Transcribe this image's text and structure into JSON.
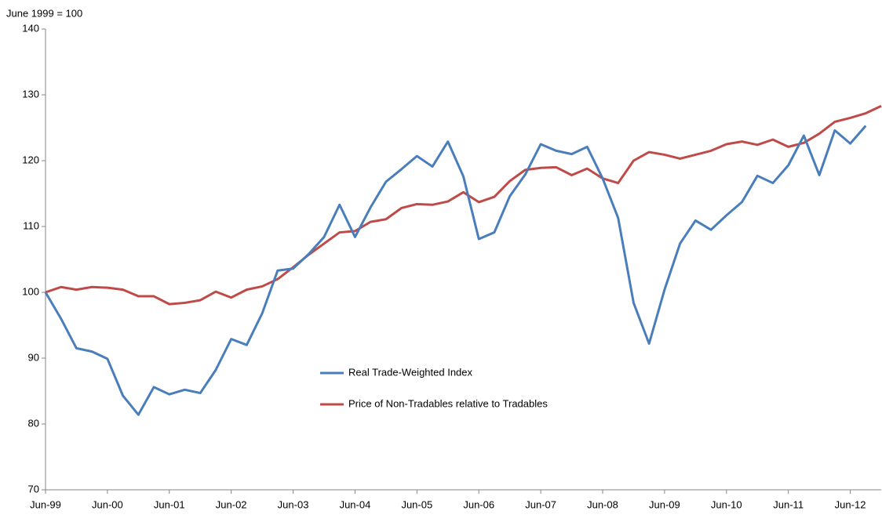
{
  "chart_data": {
    "type": "line",
    "y_label": "June 1999 = 100",
    "categories": [
      "Jun-99",
      null,
      null,
      null,
      "Jun-00",
      null,
      null,
      null,
      "Jun-01",
      null,
      null,
      null,
      "Jun-02",
      null,
      null,
      null,
      "Jun-03",
      null,
      null,
      null,
      "Jun-04",
      null,
      null,
      null,
      "Jun-05",
      null,
      null,
      null,
      "Jun-06",
      null,
      null,
      null,
      "Jun-07",
      null,
      null,
      null,
      "Jun-08",
      null,
      null,
      null,
      "Jun-09",
      null,
      null,
      null,
      "Jun-10",
      null,
      null,
      null,
      "Jun-11",
      null,
      null,
      null,
      "Jun-12",
      null,
      null
    ],
    "series": [
      {
        "name": "Real Trade-Weighted Index",
        "color": "#4a7ebb",
        "values": [
          100,
          96,
          91.5,
          91,
          89.9,
          84.3,
          81.4,
          85.6,
          84.5,
          85.2,
          84.7,
          88.2,
          92.9,
          92.0,
          96.8,
          103.3,
          103.6,
          105.8,
          108.4,
          113.3,
          108.4,
          112.9,
          116.8,
          118.7,
          120.7,
          119.1,
          122.9,
          117.6,
          108.1,
          109.1,
          114.6,
          117.9,
          122.5,
          121.5,
          121.0,
          122.1,
          117.3,
          111.3,
          98.4,
          92.2,
          100.4,
          107.4,
          110.9,
          109.5,
          111.7,
          113.7,
          117.7,
          116.6,
          119.3,
          123.8,
          117.8,
          124.6,
          122.6,
          125.3,
          null
        ]
      },
      {
        "name": "Price of Non-Tradables relative to Tradables",
        "color": "#be4b48",
        "values": [
          100,
          100.8,
          100.4,
          100.8,
          100.7,
          100.4,
          99.4,
          99.4,
          98.2,
          98.4,
          98.8,
          100.1,
          99.2,
          100.4,
          100.9,
          102.0,
          103.8,
          105.7,
          107.4,
          109.1,
          109.3,
          110.7,
          111.1,
          112.8,
          113.4,
          113.3,
          113.8,
          115.2,
          113.7,
          114.5,
          116.9,
          118.6,
          118.9,
          119.0,
          117.8,
          118.8,
          117.3,
          116.6,
          120.0,
          121.3,
          120.9,
          120.3,
          120.9,
          121.5,
          122.5,
          122.9,
          122.4,
          123.2,
          122.1,
          122.7,
          124.1,
          125.9,
          126.5,
          127.2,
          128.3
        ]
      }
    ],
    "ylim": [
      70,
      140
    ],
    "yticks": [
      70,
      80,
      90,
      100,
      110,
      120,
      130,
      140
    ],
    "grid": false
  }
}
